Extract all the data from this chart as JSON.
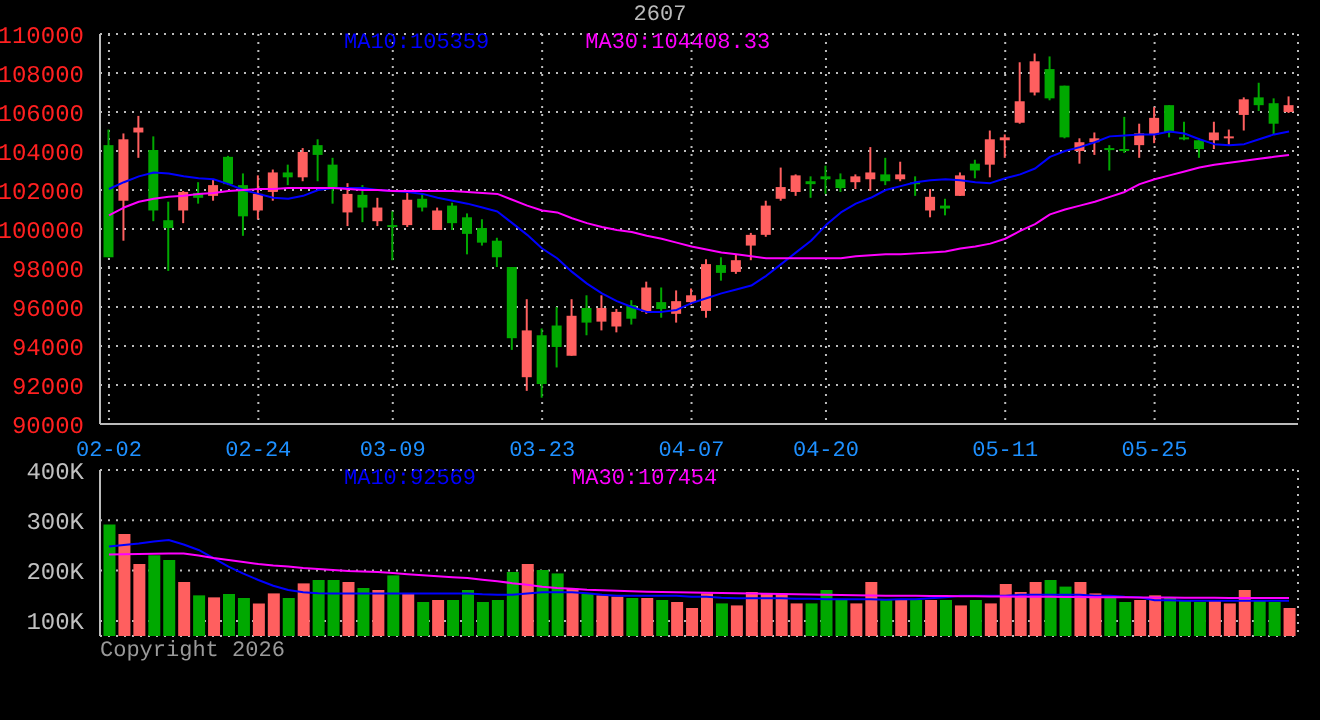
{
  "chart_data": [
    {
      "type": "candlestick",
      "title": "2607",
      "legend": "top",
      "grid": true,
      "categories": [
        "02-02",
        null,
        null,
        null,
        null,
        null,
        null,
        null,
        null,
        null,
        "02-24",
        null,
        null,
        null,
        null,
        null,
        null,
        null,
        null,
        "03-09",
        null,
        null,
        null,
        null,
        null,
        null,
        null,
        null,
        null,
        "03-23",
        null,
        null,
        null,
        null,
        null,
        null,
        null,
        null,
        null,
        "04-07",
        null,
        null,
        null,
        null,
        null,
        null,
        null,
        null,
        "04-20",
        null,
        null,
        null,
        null,
        null,
        null,
        null,
        null,
        null,
        null,
        null,
        "05-11",
        null,
        null,
        null,
        null,
        null,
        null,
        null,
        null,
        null,
        "05-25",
        null,
        null,
        null,
        null,
        null,
        null,
        null,
        null,
        null
      ],
      "ohlc": [
        [
          104300,
          105100,
          98550,
          98550
        ],
        [
          101450,
          104900,
          99400,
          104600
        ],
        [
          104950,
          105800,
          103650,
          105200
        ],
        [
          104050,
          104750,
          100400,
          100950
        ],
        [
          100450,
          101400,
          97850,
          100050
        ],
        [
          100950,
          101950,
          100300,
          101900
        ],
        [
          101850,
          102400,
          101300,
          101600
        ],
        [
          101700,
          102550,
          101450,
          102250
        ],
        [
          103700,
          103750,
          102250,
          102300
        ],
        [
          102250,
          102850,
          99650,
          100650
        ],
        [
          100950,
          102750,
          100500,
          101800
        ],
        [
          101900,
          103050,
          101450,
          102900
        ],
        [
          102900,
          103300,
          102250,
          102650
        ],
        [
          102650,
          104150,
          102450,
          103950
        ],
        [
          104300,
          104600,
          102450,
          103800
        ],
        [
          103300,
          103650,
          101300,
          102050
        ],
        [
          100850,
          102350,
          100150,
          101800
        ],
        [
          101750,
          102250,
          100350,
          101100
        ],
        [
          100400,
          101600,
          100150,
          101100
        ],
        [
          100200,
          100900,
          98400,
          100100
        ],
        [
          100200,
          101950,
          100100,
          101500
        ],
        [
          101550,
          101850,
          100900,
          101100
        ],
        [
          99950,
          101100,
          99950,
          100950
        ],
        [
          101200,
          101350,
          99950,
          100300
        ],
        [
          100600,
          100800,
          98700,
          99750
        ],
        [
          100050,
          100500,
          99150,
          99300
        ],
        [
          99400,
          99550,
          98050,
          98550
        ],
        [
          98050,
          98050,
          93800,
          94400
        ],
        [
          92400,
          96400,
          91700,
          94800
        ],
        [
          94550,
          94900,
          91350,
          92050
        ],
        [
          95050,
          96000,
          92900,
          93950
        ],
        [
          93500,
          96400,
          93500,
          95550
        ],
        [
          95950,
          96600,
          94550,
          95200
        ],
        [
          95250,
          96600,
          94800,
          95950
        ],
        [
          95000,
          95900,
          94700,
          95750
        ],
        [
          96100,
          96350,
          95100,
          95400
        ],
        [
          95750,
          97300,
          95650,
          97000
        ],
        [
          96250,
          97000,
          95450,
          95900
        ],
        [
          95650,
          96850,
          95200,
          96300
        ],
        [
          96250,
          96950,
          96100,
          96600
        ],
        [
          95800,
          98450,
          95450,
          98200
        ],
        [
          98150,
          98550,
          97350,
          97750
        ],
        [
          97800,
          98700,
          97700,
          98400
        ],
        [
          99150,
          99800,
          98400,
          99700
        ],
        [
          99700,
          101450,
          99600,
          101200
        ],
        [
          101550,
          103150,
          101450,
          102150
        ],
        [
          101900,
          102800,
          101700,
          102750
        ],
        [
          102450,
          102700,
          101600,
          102300
        ],
        [
          102700,
          103250,
          101800,
          102550
        ],
        [
          102550,
          102850,
          101900,
          102100
        ],
        [
          102400,
          102800,
          102050,
          102700
        ],
        [
          102550,
          104200,
          101950,
          102900
        ],
        [
          102800,
          103650,
          102250,
          102450
        ],
        [
          102550,
          103450,
          102450,
          102800
        ],
        [
          102400,
          102700,
          101700,
          102300
        ],
        [
          100950,
          102050,
          100600,
          101650
        ],
        [
          101200,
          101550,
          100700,
          101050
        ],
        [
          101700,
          102900,
          101700,
          102750
        ],
        [
          103350,
          103550,
          102600,
          103000
        ],
        [
          103300,
          105050,
          102650,
          104600
        ],
        [
          104550,
          104850,
          103650,
          104700
        ],
        [
          105450,
          108550,
          105400,
          106550
        ],
        [
          107000,
          109000,
          106850,
          108600
        ],
        [
          108200,
          108850,
          106600,
          106700
        ],
        [
          107350,
          107350,
          104650,
          104700
        ],
        [
          104000,
          104650,
          103350,
          104450
        ],
        [
          104450,
          104950,
          103800,
          104650
        ],
        [
          104150,
          104300,
          103000,
          104050
        ],
        [
          104100,
          105750,
          103900,
          104000
        ],
        [
          104300,
          105400,
          103650,
          104900
        ],
        [
          104850,
          106250,
          104400,
          105700
        ],
        [
          106350,
          106350,
          104700,
          104950
        ],
        [
          104700,
          105500,
          104550,
          104650
        ],
        [
          104550,
          104650,
          103650,
          104100
        ],
        [
          104550,
          105500,
          104100,
          104950
        ],
        [
          104650,
          105100,
          104300,
          104750
        ],
        [
          105850,
          106750,
          105050,
          106650
        ],
        [
          106750,
          107500,
          106050,
          106350
        ],
        [
          106450,
          106700,
          104850,
          105400
        ],
        [
          106000,
          106800,
          105950,
          106350
        ]
      ],
      "colors": [
        "#00a800",
        "#ff5f5f",
        "#ff5f5f",
        "#00a800",
        "#00a800",
        "#ff5f5f",
        "#00a800",
        "#ff5f5f",
        "#00a800",
        "#00a800",
        "#ff5f5f",
        "#ff5f5f",
        "#00a800",
        "#ff5f5f",
        "#00a800",
        "#00a800",
        "#ff5f5f",
        "#00a800",
        "#ff5f5f",
        "#00a800",
        "#ff5f5f",
        "#00a800",
        "#ff5f5f",
        "#00a800",
        "#00a800",
        "#00a800",
        "#00a800",
        "#00a800",
        "#ff5f5f",
        "#00a800",
        "#00a800",
        "#ff5f5f",
        "#00a800",
        "#ff5f5f",
        "#ff5f5f",
        "#00a800",
        "#ff5f5f",
        "#00a800",
        "#ff5f5f",
        "#ff5f5f",
        "#ff5f5f",
        "#00a800",
        "#ff5f5f",
        "#ff5f5f",
        "#ff5f5f",
        "#ff5f5f",
        "#ff5f5f",
        "#00a800",
        "#00a800",
        "#00a800",
        "#ff5f5f",
        "#ff5f5f",
        "#00a800",
        "#ff5f5f",
        "#00a800",
        "#ff5f5f",
        "#00a800",
        "#ff5f5f",
        "#00a800",
        "#ff5f5f",
        "#ff5f5f",
        "#ff5f5f",
        "#ff5f5f",
        "#00a800",
        "#00a800",
        "#ff5f5f",
        "#ff5f5f",
        "#00a800",
        "#00a800",
        "#ff5f5f",
        "#ff5f5f",
        "#00a800",
        "#00a800",
        "#00a800",
        "#ff5f5f",
        "#ff5f5f",
        "#ff5f5f",
        "#00a800",
        "#00a800",
        "#ff5f5f"
      ],
      "series": [
        {
          "type": "line",
          "name": "MA10:105359",
          "color": "#0000ff",
          "values": [
            102050,
            102400,
            102700,
            102900,
            102850,
            102700,
            102600,
            102550,
            102300,
            102000,
            101800,
            101600,
            101550,
            101700,
            102000,
            102100,
            102100,
            102100,
            102000,
            101950,
            101900,
            101800,
            101600,
            101450,
            101300,
            101100,
            100900,
            100300,
            99700,
            99000,
            98500,
            97800,
            97200,
            96700,
            96300,
            96000,
            95750,
            95750,
            95850,
            96200,
            96450,
            96700,
            96900,
            97100,
            97600,
            98200,
            98800,
            99400,
            100200,
            100850,
            101300,
            101600,
            102000,
            102200,
            102400,
            102500,
            102550,
            102500,
            102400,
            102350,
            102600,
            102800,
            103100,
            103700,
            104000,
            104200,
            104450,
            104750,
            104800,
            104850,
            104850,
            105000,
            104900,
            104600,
            104350,
            104300,
            104350,
            104600,
            104850,
            105000
          ]
        },
        {
          "type": "line",
          "name": "MA30:104408.33",
          "color": "#ff00ff",
          "values": [
            100700,
            101100,
            101400,
            101550,
            101650,
            101700,
            101800,
            101850,
            101950,
            102000,
            102050,
            102050,
            102100,
            102100,
            102100,
            102100,
            102050,
            102000,
            102000,
            101950,
            101950,
            101950,
            101950,
            101950,
            101900,
            101850,
            101800,
            101500,
            101200,
            100950,
            100850,
            100550,
            100300,
            100100,
            99950,
            99850,
            99650,
            99500,
            99300,
            99100,
            98950,
            98800,
            98700,
            98600,
            98500,
            98500,
            98500,
            98500,
            98500,
            98500,
            98600,
            98650,
            98700,
            98700,
            98750,
            98800,
            98850,
            99000,
            99100,
            99250,
            99500,
            99900,
            100250,
            100750,
            101000,
            101200,
            101400,
            101650,
            101900,
            102300,
            102550,
            102750,
            102950,
            103150,
            103300,
            103400,
            103500,
            103600,
            103700,
            103800
          ]
        }
      ],
      "ylim": [
        90000,
        110000
      ],
      "yticks": [
        90000,
        92000,
        94000,
        96000,
        98000,
        100000,
        102000,
        104000,
        106000,
        108000,
        110000
      ]
    },
    {
      "type": "bar",
      "legend": "top",
      "grid": true,
      "tick_labels": "y",
      "categories": [
        null,
        null,
        null,
        null,
        null,
        null,
        null,
        null,
        null,
        null,
        null,
        null,
        null,
        null,
        null,
        null,
        null,
        null,
        null,
        null,
        null,
        null,
        null,
        null,
        null,
        null,
        null,
        null,
        null,
        null,
        null,
        null,
        null,
        null,
        null,
        null,
        null,
        null,
        null,
        null,
        null,
        null,
        null,
        null,
        null,
        null,
        null,
        null,
        null,
        null,
        null,
        null,
        null,
        null,
        null,
        null,
        null,
        null,
        null,
        null,
        null,
        null,
        null,
        null,
        null,
        null,
        null,
        null,
        null,
        null,
        null,
        null,
        null,
        null,
        null,
        null,
        null,
        null,
        null,
        null
      ],
      "series": [
        {
          "type": "bar",
          "values": [
            291500,
            272800,
            213100,
            230300,
            221100,
            177400,
            150800,
            146800,
            153500,
            145500,
            134800,
            154700,
            145500,
            174600,
            181300,
            181300,
            177400,
            165400,
            161400,
            190500,
            154700,
            137600,
            141600,
            141600,
            161400,
            137600,
            141600,
            197200,
            213100,
            201200,
            194400,
            164200,
            154700,
            150800,
            148300,
            145500,
            145500,
            141600,
            137600,
            125700,
            154700,
            134800,
            130800,
            157500,
            154700,
            154700,
            134800,
            134800,
            161400,
            141600,
            134800,
            177400,
            141600,
            141600,
            141600,
            141600,
            141600,
            130800,
            141600,
            134800,
            173400,
            157500,
            177400,
            181300,
            168200,
            177400,
            154700,
            145500,
            137600,
            141600,
            150800,
            145500,
            141600,
            137600,
            141600,
            134800,
            161400,
            141600,
            137600,
            125700
          ],
          "colors": [
            "#00a800",
            "#ff5f5f",
            "#ff5f5f",
            "#00a800",
            "#00a800",
            "#ff5f5f",
            "#00a800",
            "#ff5f5f",
            "#00a800",
            "#00a800",
            "#ff5f5f",
            "#ff5f5f",
            "#00a800",
            "#ff5f5f",
            "#00a800",
            "#00a800",
            "#ff5f5f",
            "#00a800",
            "#ff5f5f",
            "#00a800",
            "#ff5f5f",
            "#00a800",
            "#ff5f5f",
            "#00a800",
            "#00a800",
            "#00a800",
            "#00a800",
            "#00a800",
            "#ff5f5f",
            "#00a800",
            "#00a800",
            "#ff5f5f",
            "#00a800",
            "#ff5f5f",
            "#ff5f5f",
            "#00a800",
            "#ff5f5f",
            "#00a800",
            "#ff5f5f",
            "#ff5f5f",
            "#ff5f5f",
            "#00a800",
            "#ff5f5f",
            "#ff5f5f",
            "#ff5f5f",
            "#ff5f5f",
            "#ff5f5f",
            "#00a800",
            "#00a800",
            "#00a800",
            "#ff5f5f",
            "#ff5f5f",
            "#00a800",
            "#ff5f5f",
            "#00a800",
            "#ff5f5f",
            "#00a800",
            "#ff5f5f",
            "#00a800",
            "#ff5f5f",
            "#ff5f5f",
            "#ff5f5f",
            "#ff5f5f",
            "#00a800",
            "#00a800",
            "#ff5f5f",
            "#ff5f5f",
            "#00a800",
            "#00a800",
            "#ff5f5f",
            "#ff5f5f",
            "#00a800",
            "#00a800",
            "#00a800",
            "#ff5f5f",
            "#ff5f5f",
            "#ff5f5f",
            "#00a800",
            "#00a800",
            "#ff5f5f"
          ]
        },
        {
          "type": "line",
          "name": "MA10:92569",
          "color": "#0000ff",
          "values": [
            247700,
            251000,
            254000,
            258000,
            260800,
            252000,
            241000,
            225000,
            208000,
            194000,
            181300,
            170000,
            161400,
            157000,
            155000,
            154700,
            154700,
            154700,
            154700,
            154700,
            154700,
            154700,
            154700,
            154700,
            154700,
            153000,
            152000,
            152000,
            154700,
            157000,
            157000,
            157000,
            155000,
            152000,
            150000,
            150000,
            150000,
            150000,
            150000,
            148000,
            148000,
            146000,
            145000,
            145000,
            145000,
            145000,
            144000,
            144000,
            143000,
            143000,
            143000,
            143000,
            142000,
            143000,
            143000,
            145000,
            147000,
            150000,
            150000,
            150000,
            150000,
            152000,
            152000,
            152000,
            152000,
            152000,
            150000,
            150000,
            148000,
            147000,
            141000,
            141000,
            140000,
            140000,
            140000,
            140000,
            140000,
            140000,
            140000,
            140000
          ]
        },
        {
          "type": "line",
          "name": "MA30:107454",
          "color": "#ff00ff",
          "values": [
            231800,
            232500,
            233000,
            233500,
            234000,
            234200,
            230000,
            225000,
            221100,
            217000,
            213000,
            210000,
            208000,
            205000,
            203000,
            201000,
            199000,
            198000,
            197200,
            195000,
            193000,
            191000,
            189000,
            187000,
            185300,
            182000,
            179000,
            175000,
            172000,
            168000,
            165400,
            164000,
            162000,
            161000,
            160000,
            159000,
            158000,
            157500,
            157000,
            156500,
            156000,
            155500,
            155000,
            154700,
            154000,
            153500,
            153000,
            152500,
            152000,
            151500,
            151000,
            150500,
            150000,
            150000,
            150000,
            149500,
            149500,
            149000,
            149000,
            148500,
            148500,
            148000,
            148000,
            148000,
            147500,
            147500,
            147000,
            147000,
            147000,
            146500,
            146500,
            146500,
            146000,
            146000,
            146000,
            145500,
            145500,
            145500,
            145500,
            145500
          ]
        }
      ],
      "ylim": [
        70000,
        400000
      ],
      "yticks": [
        {
          "value": 100000,
          "label": "100K"
        },
        {
          "value": 200000,
          "label": "200K"
        },
        {
          "value": 300000,
          "label": "300K"
        },
        {
          "value": 400000,
          "label": "400K"
        }
      ],
      "annotations": [
        "Copyright 2026"
      ]
    }
  ]
}
